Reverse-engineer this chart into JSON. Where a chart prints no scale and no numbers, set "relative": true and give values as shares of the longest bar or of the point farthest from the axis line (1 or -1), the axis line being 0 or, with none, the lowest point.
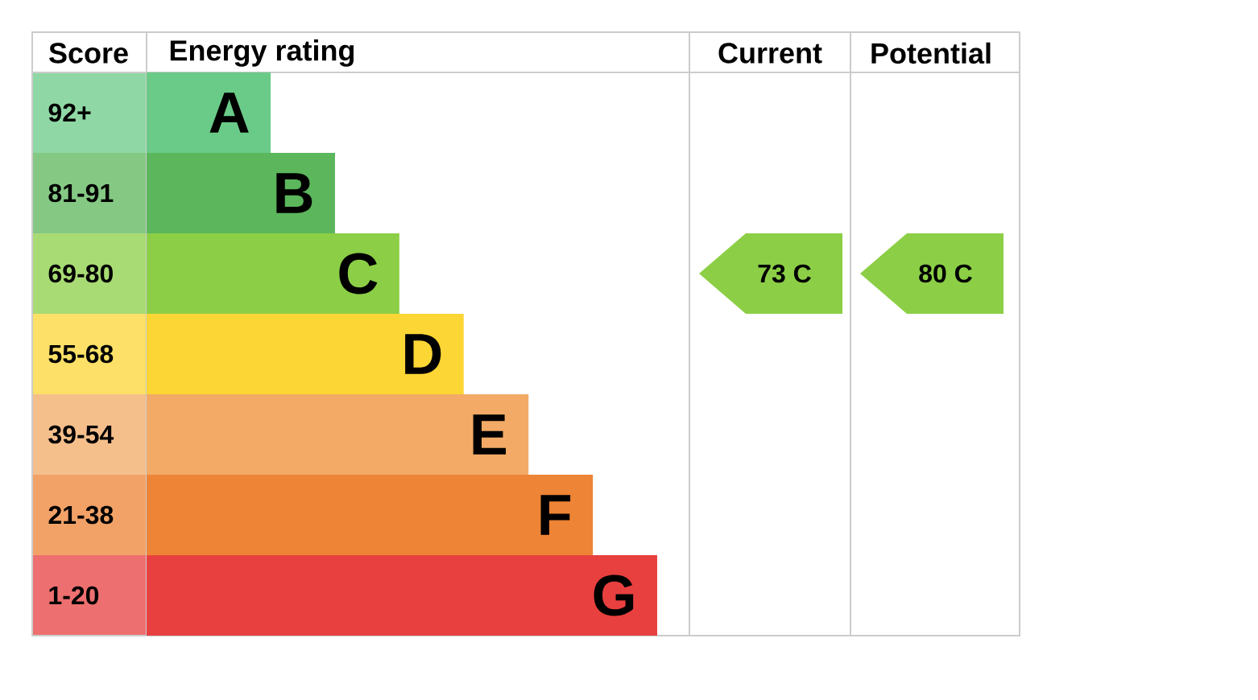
{
  "chart_data": {
    "type": "bar",
    "orientation": "horizontal",
    "relative": true,
    "categories": [
      "A",
      "B",
      "C",
      "D",
      "E",
      "F",
      "G"
    ],
    "values": [
      0.243,
      0.369,
      0.495,
      0.621,
      0.748,
      0.874,
      1
    ],
    "colors": [
      "#6acb88",
      "#5cb65c",
      "#8ccf46",
      "#fcd635",
      "#f2aa66",
      "#ee8435",
      "#e8403f"
    ],
    "annotations": [
      "Score",
      "Energy rating",
      "92+",
      "81-91",
      "69-80",
      "55-68",
      "39-54",
      "21-38",
      "1-20",
      "Current",
      "Potential",
      "73 C",
      "80 C"
    ]
  }
}
